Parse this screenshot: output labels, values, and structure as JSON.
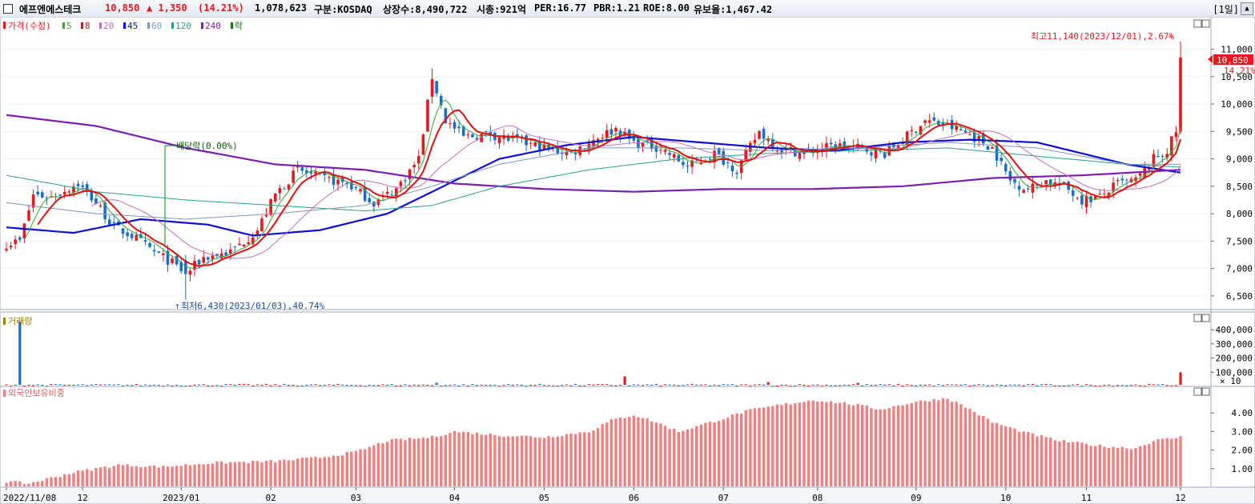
{
  "header": {
    "stock_name": "에프엔에스테크",
    "price": "10,850",
    "change": "▲ 1,350",
    "change_pct": "(14.21%)",
    "volume": "1,078,623",
    "market": "구분:KOSDAQ",
    "listed_shares": "상장수:8,490,722",
    "market_cap": "시총:921억",
    "per": "PER:16.77",
    "pbr": "PBR:1.21",
    "roe": "ROE:8.00",
    "float": "유보율:1,467.42",
    "period": "[1일]"
  },
  "colors": {
    "up": "#e5191e",
    "down": "#1a6ec8",
    "ma5": "#3aa33a",
    "ma8": "#e01010",
    "ma20": "#c070c0",
    "ma45": "#1010d0",
    "ma60": "#7a9ac0",
    "ma120": "#2aa08a",
    "ma240": "#7a20b0",
    "volume_label": "#a08000",
    "foreign": "#f08080"
  },
  "legend": {
    "price_label": "가격(수정)",
    "ma": [
      {
        "label": "5",
        "color": "#3aa33a"
      },
      {
        "label": "8",
        "color": "#e01010"
      },
      {
        "label": "20",
        "color": "#c070c0"
      },
      {
        "label": "45",
        "color": "#1010d0"
      },
      {
        "label": "60",
        "color": "#7a9ac0"
      },
      {
        "label": "120",
        "color": "#2aa08a"
      },
      {
        "label": "240",
        "color": "#7a20b0"
      }
    ],
    "rak": "락"
  },
  "annotations": {
    "high": "최고11,140(2023/12/01),2.67%",
    "low": "최저6,430(2023/01/03),40.74%",
    "dividend": "배당락(0.00%)",
    "current_price": "10,850",
    "current_pct": "14.21%"
  },
  "chart_data": [
    {
      "type": "candlestick",
      "title": "가격(수정)",
      "y_ticks": [
        6500,
        7000,
        7500,
        8000,
        8500,
        9000,
        9500,
        10000,
        10500,
        11000
      ],
      "y_tick_labels": [
        "6,500",
        "7,000",
        "7,500",
        "8,000",
        "8,500",
        "9,000",
        "9,500",
        "10,000",
        "10,500",
        "11,000"
      ],
      "ylim": [
        6250,
        11300
      ],
      "x_ticks": [
        {
          "label": "2022/11/08",
          "day": 0
        },
        {
          "label": "12",
          "day": 17
        },
        {
          "label": "2023/01",
          "day": 39
        },
        {
          "label": "02",
          "day": 59
        },
        {
          "label": "03",
          "day": 78
        },
        {
          "label": "04",
          "day": 100
        },
        {
          "label": "05",
          "day": 120
        },
        {
          "label": "06",
          "day": 140
        },
        {
          "label": "07",
          "day": 160
        },
        {
          "label": "08",
          "day": 181
        },
        {
          "label": "09",
          "day": 203
        },
        {
          "label": "10",
          "day": 223
        },
        {
          "label": "11",
          "day": 241
        },
        {
          "label": "12",
          "day": 262
        }
      ],
      "days": 263,
      "high": 11140,
      "low": 6430,
      "last_close": 10850,
      "close_keypoints": [
        [
          0,
          7450
        ],
        [
          3,
          7500
        ],
        [
          6,
          8350
        ],
        [
          10,
          8300
        ],
        [
          16,
          8550
        ],
        [
          20,
          8200
        ],
        [
          24,
          7750
        ],
        [
          28,
          7600
        ],
        [
          33,
          7300
        ],
        [
          37,
          7100
        ],
        [
          40,
          6900
        ],
        [
          44,
          7200
        ],
        [
          50,
          7300
        ],
        [
          56,
          7700
        ],
        [
          60,
          8350
        ],
        [
          65,
          8800
        ],
        [
          70,
          8650
        ],
        [
          76,
          8550
        ],
        [
          82,
          8200
        ],
        [
          87,
          8450
        ],
        [
          92,
          9000
        ],
        [
          95,
          10500
        ],
        [
          98,
          9700
        ],
        [
          102,
          9400
        ],
        [
          108,
          9450
        ],
        [
          115,
          9300
        ],
        [
          120,
          9200
        ],
        [
          126,
          9100
        ],
        [
          132,
          9400
        ],
        [
          136,
          9550
        ],
        [
          140,
          9300
        ],
        [
          146,
          9200
        ],
        [
          152,
          8850
        ],
        [
          158,
          9100
        ],
        [
          163,
          8800
        ],
        [
          168,
          9500
        ],
        [
          172,
          9200
        ],
        [
          178,
          9100
        ],
        [
          185,
          9250
        ],
        [
          190,
          9200
        ],
        [
          196,
          9100
        ],
        [
          200,
          9350
        ],
        [
          205,
          9700
        ],
        [
          210,
          9600
        ],
        [
          215,
          9450
        ],
        [
          220,
          9200
        ],
        [
          224,
          8600
        ],
        [
          228,
          8450
        ],
        [
          232,
          8600
        ],
        [
          236,
          8500
        ],
        [
          240,
          8250
        ],
        [
          244,
          8300
        ],
        [
          248,
          8550
        ],
        [
          252,
          8600
        ],
        [
          256,
          9000
        ],
        [
          259,
          9150
        ],
        [
          261,
          9500
        ],
        [
          262,
          10850
        ]
      ],
      "moving_averages": [
        {
          "name": "45",
          "keypoints": [
            [
              0,
              7750
            ],
            [
              15,
              7650
            ],
            [
              30,
              7900
            ],
            [
              45,
              7800
            ],
            [
              55,
              7600
            ],
            [
              70,
              7700
            ],
            [
              85,
              8000
            ],
            [
              95,
              8400
            ],
            [
              110,
              9000
            ],
            [
              125,
              9250
            ],
            [
              140,
              9400
            ],
            [
              155,
              9300
            ],
            [
              170,
              9200
            ],
            [
              185,
              9150
            ],
            [
              200,
              9300
            ],
            [
              215,
              9350
            ],
            [
              230,
              9300
            ],
            [
              240,
              9100
            ],
            [
              250,
              8900
            ],
            [
              262,
              8750
            ]
          ]
        },
        {
          "name": "240",
          "keypoints": [
            [
              0,
              9800
            ],
            [
              20,
              9600
            ],
            [
              40,
              9200
            ],
            [
              60,
              8900
            ],
            [
              80,
              8800
            ],
            [
              100,
              8550
            ],
            [
              120,
              8450
            ],
            [
              140,
              8400
            ],
            [
              160,
              8450
            ],
            [
              180,
              8450
            ],
            [
              200,
              8500
            ],
            [
              220,
              8650
            ],
            [
              240,
              8700
            ],
            [
              262,
              8800
            ]
          ]
        },
        {
          "name": "120",
          "keypoints": [
            [
              0,
              8700
            ],
            [
              20,
              8400
            ],
            [
              40,
              8250
            ],
            [
              60,
              8150
            ],
            [
              80,
              8050
            ],
            [
              95,
              8150
            ],
            [
              110,
              8500
            ],
            [
              130,
              8800
            ],
            [
              150,
              9000
            ],
            [
              170,
              9100
            ],
            [
              190,
              9150
            ],
            [
              210,
              9200
            ],
            [
              230,
              9050
            ],
            [
              250,
              8900
            ],
            [
              262,
              8850
            ]
          ]
        },
        {
          "name": "60",
          "keypoints": [
            [
              0,
              8200
            ],
            [
              20,
              8000
            ],
            [
              40,
              7900
            ],
            [
              60,
              8000
            ],
            [
              80,
              8150
            ],
            [
              95,
              8500
            ],
            [
              110,
              8900
            ],
            [
              130,
              9200
            ],
            [
              150,
              9200
            ],
            [
              170,
              9150
            ],
            [
              190,
              9200
            ],
            [
              210,
              9300
            ],
            [
              230,
              9200
            ],
            [
              250,
              8900
            ],
            [
              262,
              8900
            ]
          ]
        }
      ]
    },
    {
      "type": "bar",
      "title": "거래량",
      "y_ticks": [
        100000,
        200000,
        300000,
        400000
      ],
      "y_tick_labels": [
        "100,000",
        "200,000",
        "300,000",
        "400,000"
      ],
      "unit_note": "× 10",
      "ylim": [
        0,
        480000
      ],
      "spikes": [
        [
          3,
          460000
        ],
        [
          96,
          25000
        ],
        [
          138,
          70000
        ],
        [
          170,
          30000
        ],
        [
          190,
          25000
        ],
        [
          262,
          100000
        ]
      ],
      "base_range": [
        4000,
        18000
      ]
    },
    {
      "type": "bar",
      "title": "외국인보유비중",
      "y_ticks": [
        1.0,
        2.0,
        3.0,
        4.0
      ],
      "y_tick_labels": [
        "1.00",
        "2.00",
        "3.00",
        "4.00"
      ],
      "ylim": [
        0,
        5.0
      ],
      "keypoints": [
        [
          0,
          0.3
        ],
        [
          5,
          0.2
        ],
        [
          10,
          0.5
        ],
        [
          15,
          0.8
        ],
        [
          20,
          1.0
        ],
        [
          25,
          1.2
        ],
        [
          35,
          1.1
        ],
        [
          45,
          1.3
        ],
        [
          60,
          1.4
        ],
        [
          70,
          1.6
        ],
        [
          78,
          1.9
        ],
        [
          85,
          2.5
        ],
        [
          95,
          2.7
        ],
        [
          100,
          3.0
        ],
        [
          110,
          2.8
        ],
        [
          120,
          2.7
        ],
        [
          130,
          3.0
        ],
        [
          135,
          3.6
        ],
        [
          140,
          3.9
        ],
        [
          145,
          3.5
        ],
        [
          150,
          3.0
        ],
        [
          160,
          3.7
        ],
        [
          165,
          4.1
        ],
        [
          172,
          4.4
        ],
        [
          180,
          4.7
        ],
        [
          188,
          4.5
        ],
        [
          195,
          4.2
        ],
        [
          203,
          4.6
        ],
        [
          210,
          4.8
        ],
        [
          215,
          4.2
        ],
        [
          220,
          3.5
        ],
        [
          228,
          2.9
        ],
        [
          235,
          2.5
        ],
        [
          245,
          2.2
        ],
        [
          252,
          2.1
        ],
        [
          256,
          2.5
        ],
        [
          262,
          2.7
        ]
      ]
    }
  ],
  "panels": {
    "volume_label": "거래량",
    "foreign_label": "외국인보유비중"
  }
}
